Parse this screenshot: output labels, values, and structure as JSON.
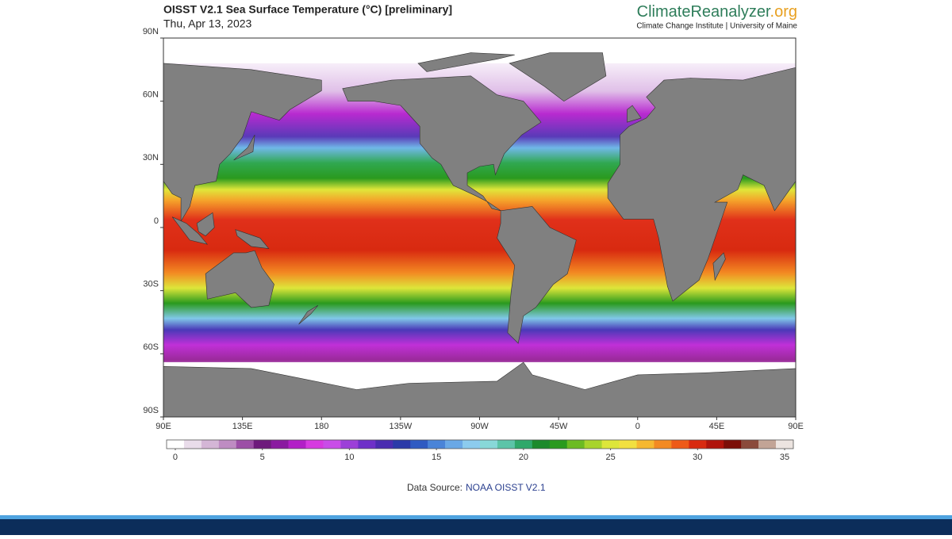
{
  "header": {
    "title": "OISST V2.1 Sea Surface Temperature (°C) [preliminary]",
    "date": "Thu, Apr 13, 2023",
    "logo": {
      "name": "ClimateReanalyzer",
      "suffix": ".org",
      "tagline": "Climate Change Institute | University of Maine"
    }
  },
  "chart_data": {
    "type": "map",
    "ylim": [
      -90,
      90
    ],
    "yticks": [
      {
        "value": 90,
        "label": "90N"
      },
      {
        "value": 60,
        "label": "60N"
      },
      {
        "value": 30,
        "label": "30N"
      },
      0,
      {
        "value": -30,
        "label": "30S"
      },
      {
        "value": -60,
        "label": "60S"
      },
      {
        "value": -90,
        "label": "90S"
      }
    ],
    "xlim": [
      90,
      450
    ],
    "xticks": [
      {
        "value": 90,
        "label": "90E"
      },
      {
        "value": 135,
        "label": "135E"
      },
      180,
      {
        "value": 225,
        "label": "135W"
      },
      {
        "value": 270,
        "label": "90W"
      },
      {
        "value": 315,
        "label": "45W"
      },
      {
        "value": 360,
        "label": "0"
      },
      {
        "value": 405,
        "label": "45E"
      },
      {
        "value": 450,
        "label": "90E"
      }
    ],
    "land_color": "#808080"
  },
  "colorbar": {
    "range": [
      -0.5,
      35.5
    ],
    "ticks": [
      0,
      5,
      10,
      15,
      20,
      25,
      30,
      35
    ],
    "colors": [
      "#ffffff",
      "#e9dcea",
      "#d4b6d6",
      "#be8cc2",
      "#9c4fa6",
      "#6e1a7c",
      "#8a1aa0",
      "#b21fc7",
      "#d63ae0",
      "#c94de8",
      "#9c3fd8",
      "#6e30c8",
      "#4a2cb0",
      "#2b3aa8",
      "#2f5bc2",
      "#4a84d8",
      "#6aa8e6",
      "#8ccbee",
      "#88d8d8",
      "#5cc4a8",
      "#2fa86a",
      "#1c8a2c",
      "#2a9a1e",
      "#6cbb22",
      "#a8d42c",
      "#dde63a",
      "#f2e040",
      "#f6b830",
      "#f38a22",
      "#ee5a18",
      "#d82a10",
      "#b0140c",
      "#7c0e08",
      "#8a4a3c",
      "#c2a496",
      "#ece4e0"
    ]
  },
  "footer": {
    "label": "Data Source:",
    "link": "NOAA OISST V2.1"
  }
}
